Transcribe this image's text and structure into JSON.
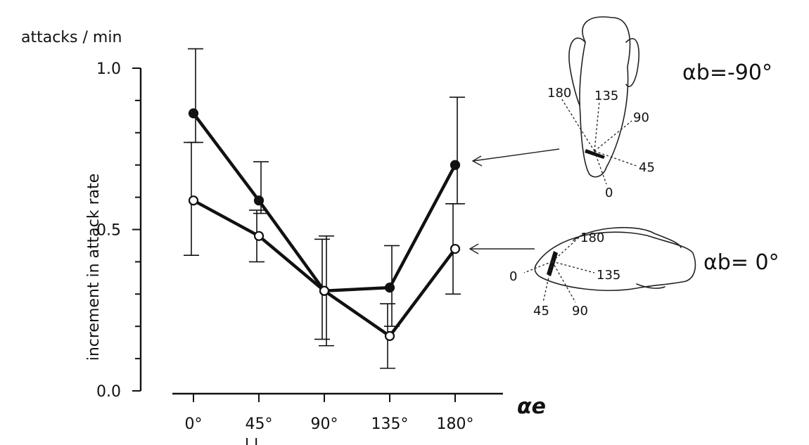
{
  "chart_data": {
    "type": "line",
    "title": "",
    "ylabel_units": "attacks / min",
    "ylabel": "increment in attack rate",
    "xlabel": "αe",
    "categories": [
      "0°",
      "45°",
      "90°",
      "135°",
      "180°"
    ],
    "ylim": [
      0.0,
      1.0
    ],
    "yticks": [
      0.0,
      0.5,
      1.0
    ],
    "ytick_labels": [
      "0.0",
      "0.5",
      "1.0"
    ],
    "grid": false,
    "legend": "none",
    "series": [
      {
        "marker": "filled",
        "values": [
          0.86,
          0.59,
          0.31,
          0.32,
          0.7
        ],
        "error_low": [
          0.77,
          0.55,
          0.14,
          0.2,
          0.58
        ],
        "error_high": [
          1.06,
          0.71,
          0.48,
          0.45,
          0.91
        ],
        "annotation": {
          "label": "αb=-90°",
          "angle_labels": [
            "180",
            "135",
            "90",
            "45",
            "0"
          ]
        }
      },
      {
        "marker": "open",
        "values": [
          0.59,
          0.48,
          0.31,
          0.17,
          0.44
        ],
        "error_low": [
          0.42,
          0.4,
          0.16,
          0.07,
          0.3
        ],
        "error_high": [
          0.77,
          0.56,
          0.47,
          0.27,
          0.58
        ],
        "annotation": {
          "label": "αb= 0°",
          "angle_labels": [
            "180",
            "135",
            "90",
            "45",
            "0"
          ]
        }
      }
    ],
    "bottom_text": "... l l ... "
  }
}
